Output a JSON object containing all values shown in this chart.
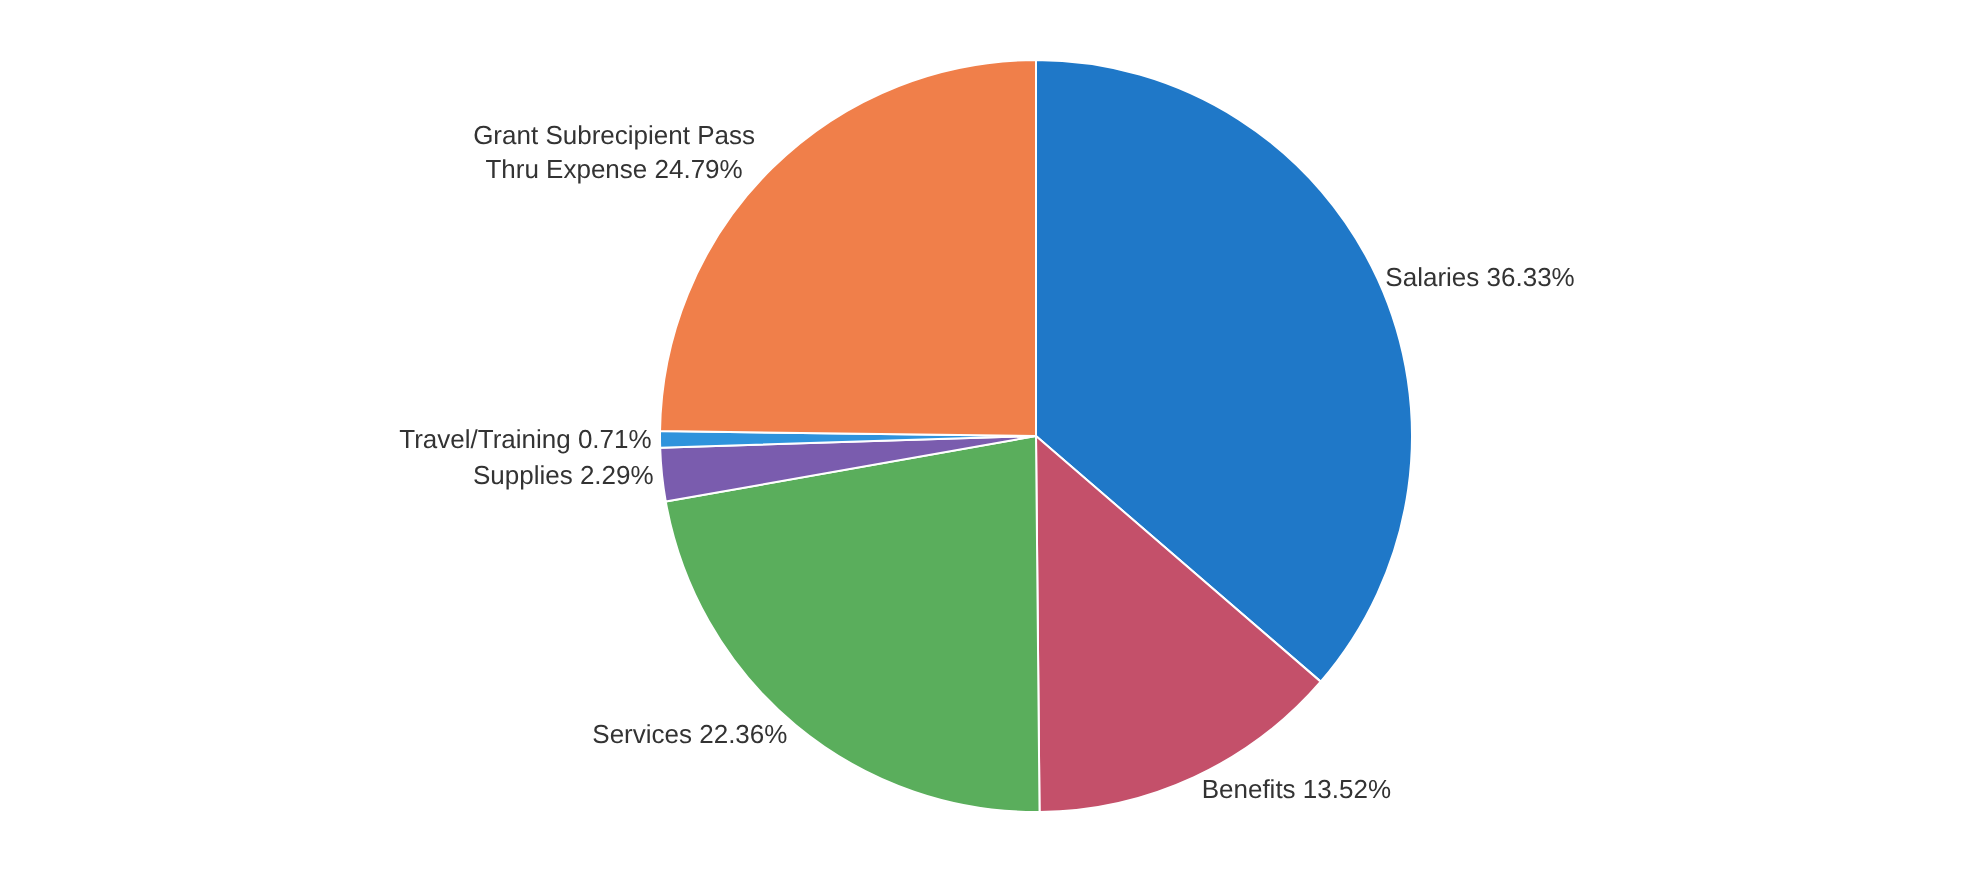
{
  "chart_data": {
    "type": "pie",
    "categories": [
      "Salaries",
      "Benefits",
      "Services",
      "Supplies",
      "Travel/Training",
      "Grant Subrecipient Pass Thru Expense"
    ],
    "values": [
      36.33,
      13.52,
      22.36,
      2.29,
      0.71,
      24.79
    ],
    "value_labels": [
      "36.33%",
      "13.52%",
      "22.36%",
      "2.29%",
      "0.71%",
      "24.79%"
    ],
    "colors": [
      "#1f78c8",
      "#c4506a",
      "#5aae5c",
      "#7a5cae",
      "#2f93dc",
      "#f07f4a"
    ],
    "legend": false
  }
}
